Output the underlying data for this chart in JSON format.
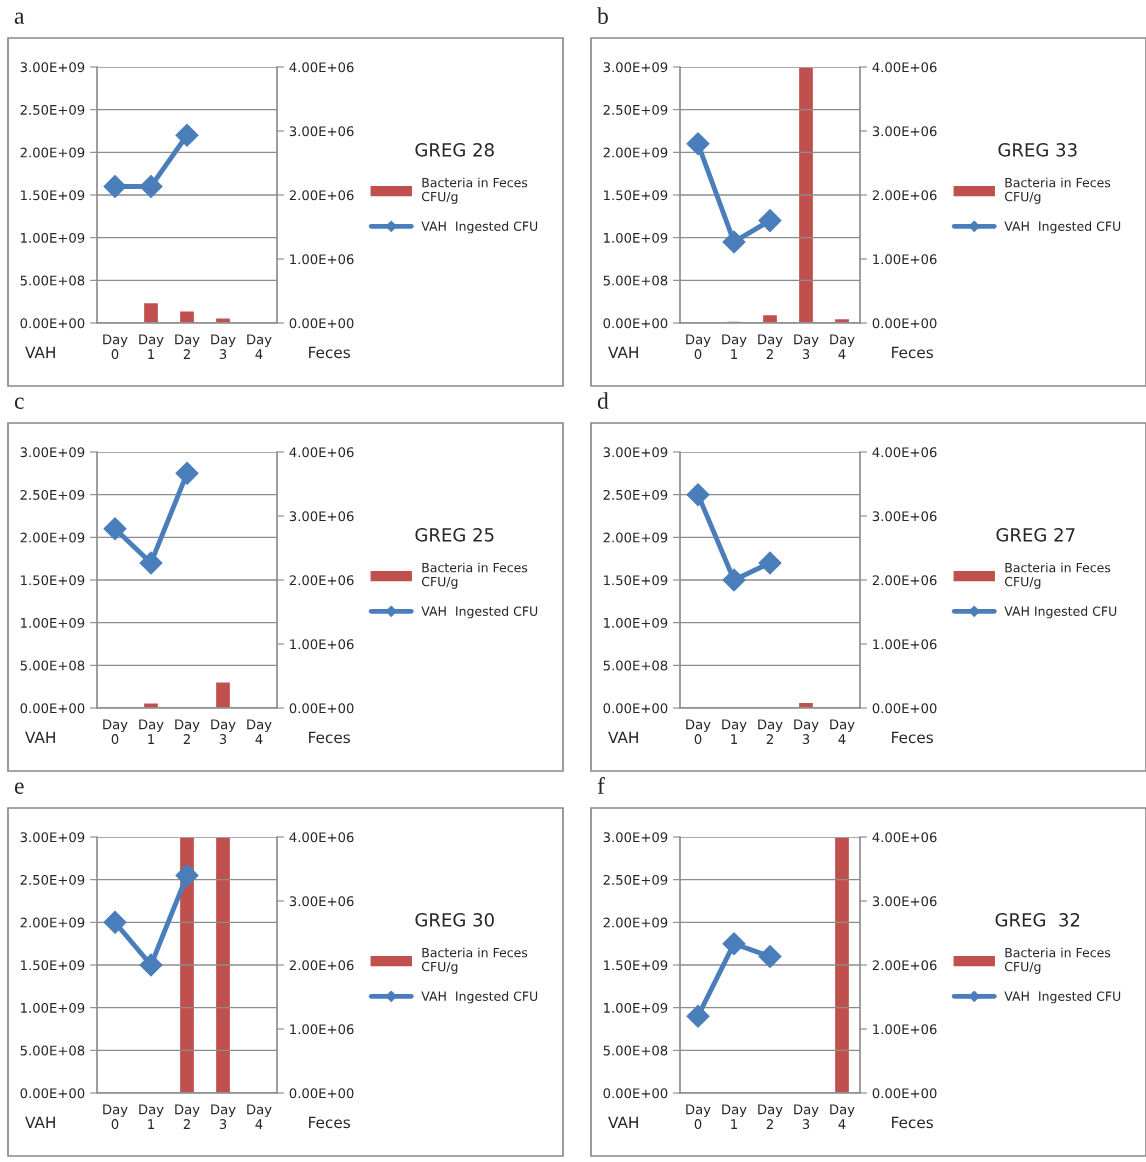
{
  "chart_data": [
    {
      "type": "bar",
      "title": "a",
      "legend_title": "GREG 28",
      "ylabel": "VAH",
      "y2label": "Feces",
      "categories": [
        "Day\n0",
        "Day\n1",
        "Day\n2",
        "Day\n3",
        "Day\n4"
      ],
      "series": [
        {
          "name": "Bacteria in Feces\nCFU/g",
          "axis": "y2",
          "color": "#c0504d",
          "values": [
            null,
            320000,
            190000,
            80000,
            null
          ]
        },
        {
          "name": "VAH  Ingested CFU",
          "type": "line",
          "axis": "y",
          "color": "#4a7ebb",
          "marker": "diamond",
          "values": [
            1600000000,
            1600000000,
            2200000000,
            null,
            null
          ]
        }
      ],
      "ylim": [
        0,
        3000000000
      ],
      "yticks": [
        {
          "value": 0,
          "label": "0.00E+00"
        },
        {
          "value": 500000000,
          "label": "5.00E+08"
        },
        {
          "value": 1000000000,
          "label": "1.00E+09"
        },
        {
          "value": 1500000000,
          "label": "1.50E+09"
        },
        {
          "value": 2000000000,
          "label": "2.00E+09"
        },
        {
          "value": 2500000000,
          "label": "2.50E+09"
        },
        {
          "value": 3000000000,
          "label": "3.00E+09"
        }
      ],
      "y2lim": [
        0,
        4000000
      ],
      "y2ticks": [
        {
          "value": 0,
          "label": "0.00E+00"
        },
        {
          "value": 1000000,
          "label": "1.00E+06"
        },
        {
          "value": 2000000,
          "label": "2.00E+06"
        },
        {
          "value": 3000000,
          "label": "3.00E+06"
        },
        {
          "value": 4000000,
          "label": "4.00E+06"
        }
      ],
      "grid": "y",
      "legend": "right"
    },
    {
      "type": "bar",
      "title": "b",
      "legend_title": "GREG 33",
      "ylabel": "VAH",
      "y2label": "Feces",
      "categories": [
        "Day\n0",
        "Day\n1",
        "Day\n2",
        "Day\n3",
        "Day\n4"
      ],
      "series": [
        {
          "name": "Bacteria in Feces\nCFU/g",
          "axis": "y2",
          "color": "#c0504d",
          "values": [
            null,
            30000,
            130000,
            4000000,
            70000
          ]
        },
        {
          "name": "VAH  Ingested CFU",
          "type": "line",
          "axis": "y",
          "color": "#4a7ebb",
          "marker": "diamond",
          "values": [
            2100000000,
            950000000,
            1200000000,
            null,
            null
          ]
        }
      ],
      "ylim": [
        0,
        3000000000
      ],
      "yticks": [
        {
          "value": 0,
          "label": "0.00E+00"
        },
        {
          "value": 500000000,
          "label": "5.00E+08"
        },
        {
          "value": 1000000000,
          "label": "1.00E+09"
        },
        {
          "value": 1500000000,
          "label": "1.50E+09"
        },
        {
          "value": 2000000000,
          "label": "2.00E+09"
        },
        {
          "value": 2500000000,
          "label": "2.50E+09"
        },
        {
          "value": 3000000000,
          "label": "3.00E+09"
        }
      ],
      "y2lim": [
        0,
        4000000
      ],
      "y2ticks": [
        {
          "value": 0,
          "label": "0.00E+00"
        },
        {
          "value": 1000000,
          "label": "1.00E+06"
        },
        {
          "value": 2000000,
          "label": "2.00E+06"
        },
        {
          "value": 3000000,
          "label": "3.00E+06"
        },
        {
          "value": 4000000,
          "label": "4.00E+06"
        }
      ],
      "grid": "y",
      "legend": "right"
    },
    {
      "type": "bar",
      "title": "c",
      "legend_title": "GREG 25",
      "ylabel": "VAH",
      "y2label": "Feces",
      "categories": [
        "Day\n0",
        "Day\n1",
        "Day\n2",
        "Day\n3",
        "Day\n4"
      ],
      "series": [
        {
          "name": "Bacteria in Feces\nCFU/g",
          "axis": "y2",
          "color": "#c0504d",
          "values": [
            null,
            80000,
            null,
            410000,
            null
          ]
        },
        {
          "name": "VAH  Ingested CFU",
          "type": "line",
          "axis": "y",
          "color": "#4a7ebb",
          "marker": "diamond",
          "values": [
            2100000000,
            1700000000,
            2750000000,
            null,
            null
          ]
        }
      ],
      "ylim": [
        0,
        3000000000
      ],
      "yticks": [
        {
          "value": 0,
          "label": "0.00E+00"
        },
        {
          "value": 500000000,
          "label": "5.00E+08"
        },
        {
          "value": 1000000000,
          "label": "1.00E+09"
        },
        {
          "value": 1500000000,
          "label": "1.50E+09"
        },
        {
          "value": 2000000000,
          "label": "2.00E+09"
        },
        {
          "value": 2500000000,
          "label": "2.50E+09"
        },
        {
          "value": 3000000000,
          "label": "3.00E+09"
        }
      ],
      "y2lim": [
        0,
        4000000
      ],
      "y2ticks": [
        {
          "value": 0,
          "label": "0.00E+00"
        },
        {
          "value": 1000000,
          "label": "1.00E+06"
        },
        {
          "value": 2000000,
          "label": "2.00E+06"
        },
        {
          "value": 3000000,
          "label": "3.00E+06"
        },
        {
          "value": 4000000,
          "label": "4.00E+06"
        }
      ],
      "grid": "y",
      "legend": "right"
    },
    {
      "type": "bar",
      "title": "d",
      "legend_title": "GREG 27",
      "ylabel": "VAH",
      "y2label": "Feces",
      "categories": [
        "Day\n0",
        "Day\n1",
        "Day\n2",
        "Day\n3",
        "Day\n4"
      ],
      "series": [
        {
          "name": "Bacteria in Feces\nCFU/g",
          "axis": "y2",
          "color": "#c0504d",
          "values": [
            null,
            null,
            null,
            90000,
            null
          ]
        },
        {
          "name": "VAH Ingested CFU",
          "type": "line",
          "axis": "y",
          "color": "#4a7ebb",
          "marker": "diamond",
          "values": [
            2500000000,
            1500000000,
            1700000000,
            null,
            null
          ]
        }
      ],
      "ylim": [
        0,
        3000000000
      ],
      "yticks": [
        {
          "value": 0,
          "label": "0.00E+00"
        },
        {
          "value": 500000000,
          "label": "5.00E+08"
        },
        {
          "value": 1000000000,
          "label": "1.00E+09"
        },
        {
          "value": 1500000000,
          "label": "1.50E+09"
        },
        {
          "value": 2000000000,
          "label": "2.00E+09"
        },
        {
          "value": 2500000000,
          "label": "2.50E+09"
        },
        {
          "value": 3000000000,
          "label": "3.00E+09"
        }
      ],
      "y2lim": [
        0,
        4000000
      ],
      "y2ticks": [
        {
          "value": 0,
          "label": "0.00E+00"
        },
        {
          "value": 1000000,
          "label": "1.00E+06"
        },
        {
          "value": 2000000,
          "label": "2.00E+06"
        },
        {
          "value": 3000000,
          "label": "3.00E+06"
        },
        {
          "value": 4000000,
          "label": "4.00E+06"
        }
      ],
      "grid": "y",
      "legend": "right"
    },
    {
      "type": "bar",
      "title": "e",
      "legend_title": "GREG 30",
      "ylabel": "VAH",
      "y2label": "Feces",
      "categories": [
        "Day\n0",
        "Day\n1",
        "Day\n2",
        "Day\n3",
        "Day\n4"
      ],
      "series": [
        {
          "name": "Bacteria in Feces\nCFU/g",
          "axis": "y2",
          "color": "#c0504d",
          "values": [
            null,
            null,
            4000000,
            4000000,
            20000
          ]
        },
        {
          "name": "VAH  Ingested CFU",
          "type": "line",
          "axis": "y",
          "color": "#4a7ebb",
          "marker": "diamond",
          "values": [
            2000000000,
            1500000000,
            2550000000,
            null,
            null
          ]
        }
      ],
      "ylim": [
        0,
        3000000000
      ],
      "yticks": [
        {
          "value": 0,
          "label": "0.00E+00"
        },
        {
          "value": 500000000,
          "label": "5.00E+08"
        },
        {
          "value": 1000000000,
          "label": "1.00E+09"
        },
        {
          "value": 1500000000,
          "label": "1.50E+09"
        },
        {
          "value": 2000000000,
          "label": "2.00E+09"
        },
        {
          "value": 2500000000,
          "label": "2.50E+09"
        },
        {
          "value": 3000000000,
          "label": "3.00E+09"
        }
      ],
      "y2lim": [
        0,
        4000000
      ],
      "y2ticks": [
        {
          "value": 0,
          "label": "0.00E+00"
        },
        {
          "value": 1000000,
          "label": "1.00E+06"
        },
        {
          "value": 2000000,
          "label": "2.00E+06"
        },
        {
          "value": 3000000,
          "label": "3.00E+06"
        },
        {
          "value": 4000000,
          "label": "4.00E+06"
        }
      ],
      "grid": "y",
      "legend": "right"
    },
    {
      "type": "bar",
      "title": "f",
      "legend_title": "GREG  32",
      "ylabel": "VAH",
      "y2label": "Feces",
      "categories": [
        "Day\n0",
        "Day\n1",
        "Day\n2",
        "Day\n3",
        "Day\n4"
      ],
      "series": [
        {
          "name": "Bacteria in Feces\nCFU/g",
          "axis": "y2",
          "color": "#c0504d",
          "values": [
            null,
            null,
            null,
            null,
            4000000
          ]
        },
        {
          "name": "VAH  Ingested CFU",
          "type": "line",
          "axis": "y",
          "color": "#4a7ebb",
          "marker": "diamond",
          "values": [
            900000000,
            1750000000,
            1600000000,
            null,
            null
          ]
        }
      ],
      "ylim": [
        0,
        3000000000
      ],
      "yticks": [
        {
          "value": 0,
          "label": "0.00E+00"
        },
        {
          "value": 500000000,
          "label": "5.00E+08"
        },
        {
          "value": 1000000000,
          "label": "1.00E+09"
        },
        {
          "value": 1500000000,
          "label": "1.50E+09"
        },
        {
          "value": 2000000000,
          "label": "2.00E+09"
        },
        {
          "value": 2500000000,
          "label": "2.50E+09"
        },
        {
          "value": 3000000000,
          "label": "3.00E+09"
        }
      ],
      "y2lim": [
        0,
        4000000
      ],
      "y2ticks": [
        {
          "value": 0,
          "label": "0.00E+00"
        },
        {
          "value": 1000000,
          "label": "1.00E+06"
        },
        {
          "value": 2000000,
          "label": "2.00E+06"
        },
        {
          "value": 3000000,
          "label": "3.00E+06"
        },
        {
          "value": 4000000,
          "label": "4.00E+06"
        }
      ],
      "grid": "y",
      "legend": "right"
    }
  ]
}
